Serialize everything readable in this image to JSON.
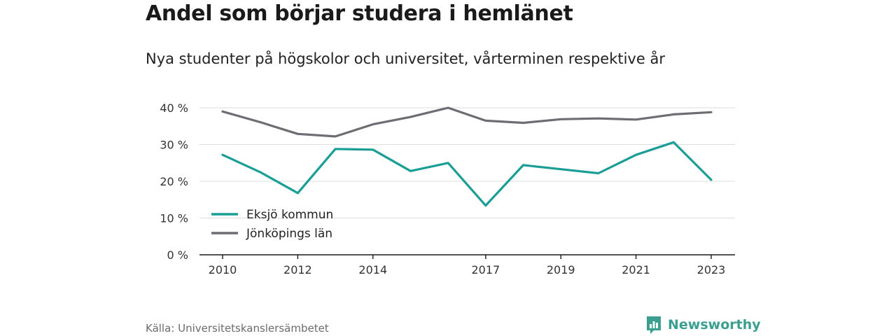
{
  "title": "Andel som börjar studera i hemlänet",
  "subtitle": "Nya studenter på högskolor och universitet, vårterminen respektive år",
  "source": "Källa: Universitetskanslersämbetet",
  "brand": {
    "name": "Newsworthy",
    "color": "#3a9f8f",
    "icon": "bar-chart-logo-icon"
  },
  "chart_data": {
    "type": "line",
    "x": [
      2010,
      2011,
      2012,
      2013,
      2014,
      2015,
      2016,
      2017,
      2018,
      2019,
      2020,
      2021,
      2022,
      2023
    ],
    "x_tick_labels": [
      "2010",
      "2012",
      "2014",
      "2017",
      "2019",
      "2021",
      "2023"
    ],
    "x_tick_values": [
      2010,
      2012,
      2014,
      2017,
      2019,
      2021,
      2023
    ],
    "y_tick_labels": [
      "0 %",
      "10 %",
      "20 %",
      "30 %",
      "40 %"
    ],
    "y_tick_values": [
      0,
      10,
      20,
      30,
      40
    ],
    "ylim": [
      0,
      40
    ],
    "grid": true,
    "legend_position": "bottom-left",
    "series": [
      {
        "name": "Eksjö kommun",
        "color": "#1a9e96",
        "values": [
          27.2,
          22.5,
          16.8,
          28.8,
          28.6,
          22.8,
          25.0,
          13.4,
          24.4,
          23.3,
          22.2,
          27.2,
          30.6,
          20.4
        ]
      },
      {
        "name": "Jönköpings län",
        "color": "#6e6d73",
        "values": [
          39.0,
          36.1,
          32.9,
          32.2,
          35.5,
          37.5,
          40.0,
          36.5,
          35.9,
          36.9,
          37.1,
          36.8,
          38.2,
          38.8
        ]
      }
    ]
  }
}
